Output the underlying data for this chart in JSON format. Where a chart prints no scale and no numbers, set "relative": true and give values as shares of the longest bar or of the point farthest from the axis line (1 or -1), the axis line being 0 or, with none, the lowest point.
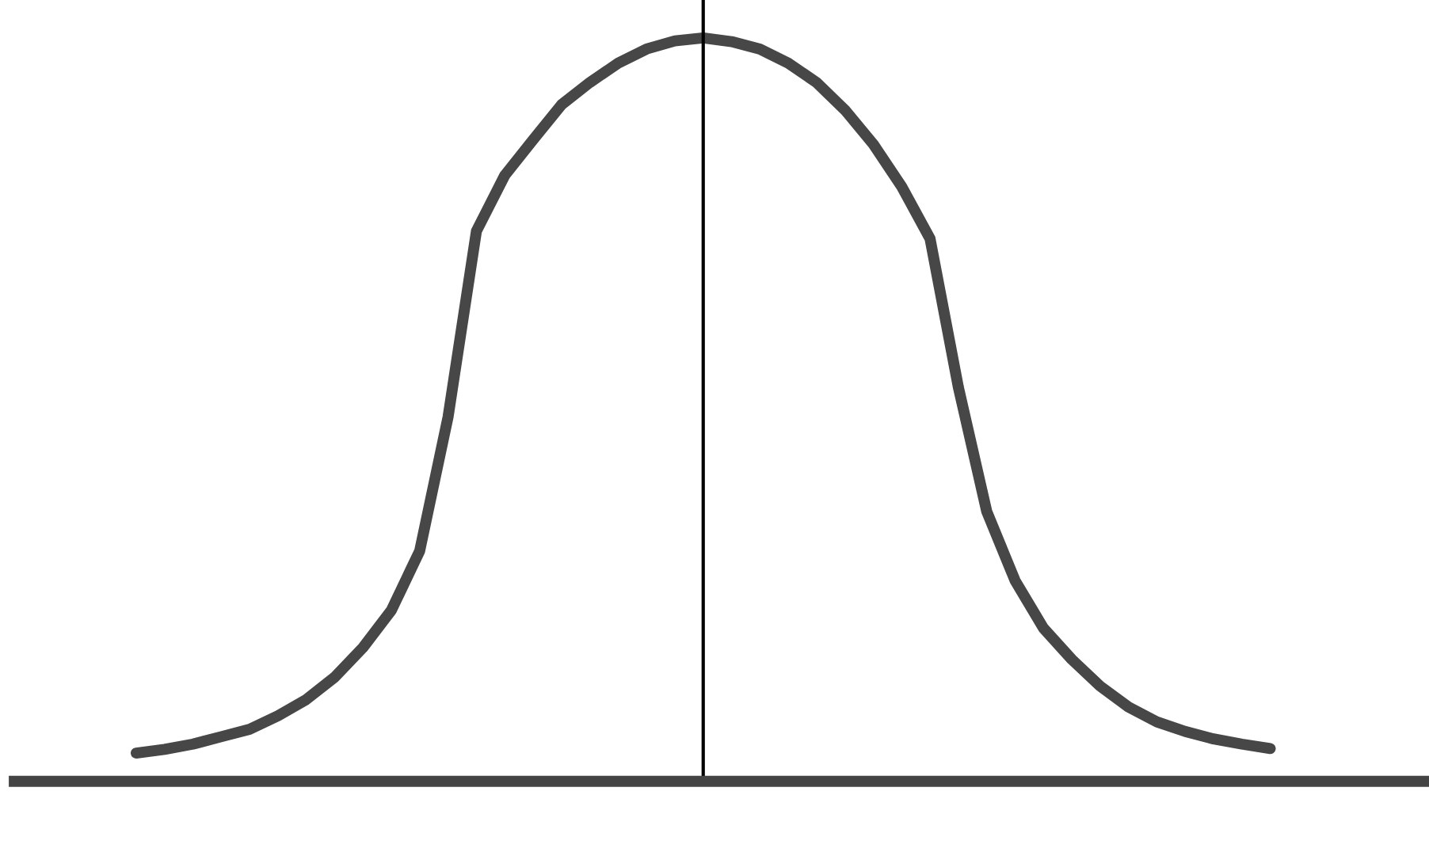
{
  "chart_data": {
    "type": "line",
    "relative": true,
    "grid": false,
    "legend": false,
    "categories": [
      null,
      null,
      null,
      null,
      null,
      null,
      null,
      null,
      null,
      null,
      null,
      null,
      null,
      null,
      null,
      null,
      null,
      null,
      null,
      null,
      null,
      null,
      null,
      null,
      null,
      null,
      null,
      null,
      null,
      null,
      null,
      null,
      null,
      null,
      null,
      null,
      null,
      null,
      null,
      null,
      null
    ],
    "series": [
      {
        "color": "#474747",
        "values": [
          0.038,
          0.043,
          0.05,
          0.06,
          0.07,
          0.088,
          0.11,
          0.14,
          0.18,
          0.23,
          0.31,
          0.49,
          0.74,
          0.815,
          0.863,
          0.91,
          0.94,
          0.966,
          0.985,
          0.996,
          1.0,
          0.995,
          0.985,
          0.966,
          0.94,
          0.903,
          0.857,
          0.8,
          0.73,
          0.53,
          0.363,
          0.27,
          0.206,
          0.164,
          0.128,
          0.1,
          0.08,
          0.067,
          0.057,
          0.05,
          0.044
        ]
      }
    ]
  }
}
